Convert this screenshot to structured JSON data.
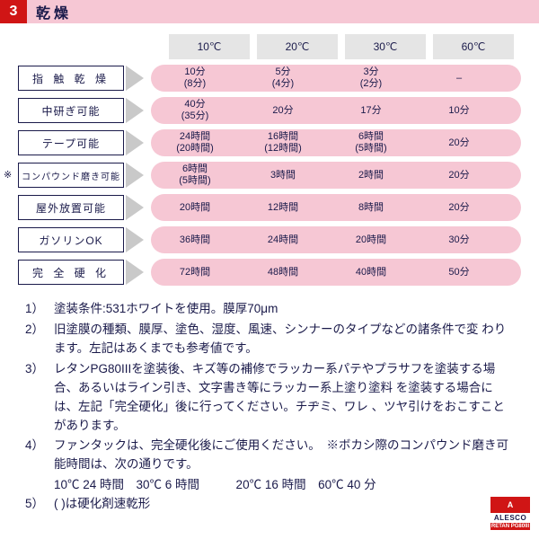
{
  "header": {
    "number": "3",
    "title": "乾燥"
  },
  "columns": [
    "10℃",
    "20℃",
    "30℃",
    "60℃"
  ],
  "rows": [
    {
      "label": "指 触 乾 燥",
      "ls": true,
      "cells": [
        [
          "10分",
          "(8分)"
        ],
        [
          "5分",
          "(4分)"
        ],
        [
          "3分",
          "(2分)"
        ],
        [
          "–"
        ]
      ]
    },
    {
      "label": "中研ぎ可能",
      "cells": [
        [
          "40分",
          "(35分)"
        ],
        [
          "20分"
        ],
        [
          "17分"
        ],
        [
          "10分"
        ]
      ]
    },
    {
      "label": "テープ可能",
      "cells": [
        [
          "24時間",
          "(20時間)"
        ],
        [
          "16時間",
          "(12時間)"
        ],
        [
          "6時間",
          "(5時間)"
        ],
        [
          "20分"
        ]
      ]
    },
    {
      "label": "コンパウンド磨き可能",
      "note": "※",
      "small": true,
      "cells": [
        [
          "6時間",
          "(5時間)"
        ],
        [
          "3時間"
        ],
        [
          "2時間"
        ],
        [
          "20分"
        ]
      ]
    },
    {
      "label": "屋外放置可能",
      "cells": [
        [
          "20時間"
        ],
        [
          "12時間"
        ],
        [
          "8時間"
        ],
        [
          "20分"
        ]
      ]
    },
    {
      "label": "ガソリンOK",
      "cells": [
        [
          "36時間"
        ],
        [
          "24時間"
        ],
        [
          "20時間"
        ],
        [
          "30分"
        ]
      ]
    },
    {
      "label": "完 全 硬 化",
      "ls": true,
      "cells": [
        [
          "72時間"
        ],
        [
          "48時間"
        ],
        [
          "40時間"
        ],
        [
          "50分"
        ]
      ]
    }
  ],
  "footnotes": [
    {
      "n": "1）",
      "t": "塗装条件:531ホワイトを使用。膜厚70μm"
    },
    {
      "n": "2）",
      "t": "旧塗膜の種類、膜厚、塗色、湿度、風速、シンナーのタイプなどの諸条件で変 わります。左記はあくまでも参考値です。"
    },
    {
      "n": "3）",
      "t": "レタンPG80IIIを塗装後、キズ等の補修でラッカー系パテやプラサフを塗装する場合、あるいはライン引き、文字書き等にラッカー系上塗り塗料 を塗装する場合には、左記「完全硬化」後に行ってください。チヂミ、ワレ 、ツヤ引けをおこすことがあります。"
    },
    {
      "n": "4）",
      "t": "ファンタックは、完全硬化後にご使用ください。　※ボカシ際のコンパウンド磨き可能時間は、次の通りです。"
    }
  ],
  "tempLine": "10℃ 24 時間　30℃ 6 時間　　　20℃ 16 時間　60℃ 40 分",
  "footnote5": {
    "n": "5）",
    "t": "( )は硬化剤速乾形"
  },
  "logo": {
    "top": "A",
    "mid": "ALESCO",
    "bot": "RETAN PG80III"
  }
}
